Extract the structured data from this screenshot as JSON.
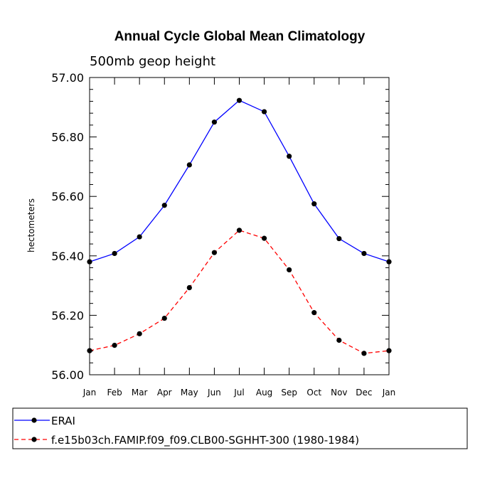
{
  "chart_data": {
    "type": "line",
    "title": "Annual Cycle Global Mean Climatology",
    "subtitle": "500mb geop height",
    "ylabel": "hectometers",
    "xlabel": "",
    "ylim": [
      56.0,
      57.0
    ],
    "yticks": [
      "56.00",
      "56.20",
      "56.40",
      "56.60",
      "56.80",
      "57.00"
    ],
    "categories": [
      "Jan",
      "Feb",
      "Mar",
      "Apr",
      "May",
      "Jun",
      "Jul",
      "Aug",
      "Sep",
      "Oct",
      "Nov",
      "Dec",
      "Jan"
    ],
    "grid": false,
    "legend_position": "bottom",
    "series": [
      {
        "name": "ERAI",
        "color": "#0000ff",
        "dash": "solid",
        "marker": "dot",
        "values": [
          56.38,
          56.408,
          56.464,
          56.57,
          56.706,
          56.85,
          56.923,
          56.885,
          56.735,
          56.575,
          56.458,
          56.408,
          56.38
        ]
      },
      {
        "name": "f.e15b03ch.FAMIP.f09_f09.CLB00-SGHHT-300 (1980-1984)",
        "color": "#ff0000",
        "dash": "dashed",
        "marker": "dot",
        "values": [
          56.081,
          56.099,
          56.138,
          56.19,
          56.293,
          56.411,
          56.486,
          56.459,
          56.353,
          56.209,
          56.116,
          56.072,
          56.081
        ]
      }
    ]
  }
}
